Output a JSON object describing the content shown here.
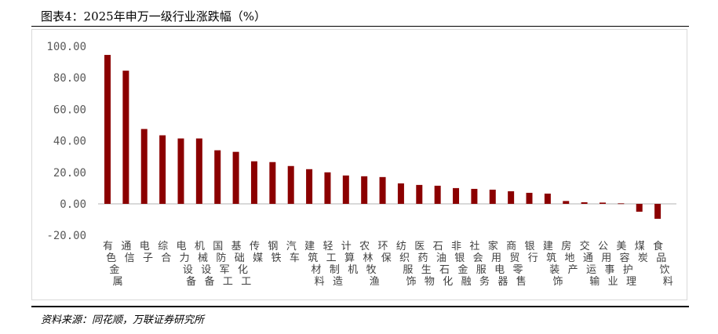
{
  "title": "图表4：2025年申万一级行业涨跌幅（%）",
  "source": "资料来源：同花顺，万联证券研究所",
  "colors": {
    "bar": "#8B0000",
    "zero_line": "#d9d9d9"
  },
  "chart_data": {
    "type": "bar",
    "title": "",
    "xlabel": "",
    "ylabel": "",
    "ylim": [
      -20,
      100
    ],
    "yticks": [
      "100.00",
      "80.00",
      "60.00",
      "40.00",
      "20.00",
      "0.00",
      "-20.00"
    ],
    "grid": false,
    "categories": [
      "有色金属",
      "通信",
      "电子",
      "综合",
      "电力设备",
      "机械设备",
      "国防军工",
      "基础化工",
      "传媒",
      "钢铁",
      "汽车",
      "建筑材料",
      "轻工制造",
      "计算机",
      "农林牧渔",
      "环保",
      "纺织服饰",
      "医药生物",
      "石油石化",
      "非银金融",
      "社会服务",
      "家用电器",
      "商贸零售",
      "银行",
      "建筑装饰",
      "房地产",
      "交通运输",
      "公用事业",
      "美容护理",
      "煤炭",
      "食品饮料"
    ],
    "values": [
      94.5,
      84.5,
      47.5,
      43.5,
      41.5,
      41.5,
      34.0,
      33.0,
      27.0,
      26.5,
      24.0,
      22.0,
      20.0,
      18.0,
      17.5,
      17.0,
      13.0,
      12.0,
      11.5,
      10.0,
      9.5,
      9.0,
      8.0,
      7.0,
      6.5,
      1.8,
      1.0,
      0.8,
      0.3,
      -5.0,
      -9.5
    ]
  }
}
